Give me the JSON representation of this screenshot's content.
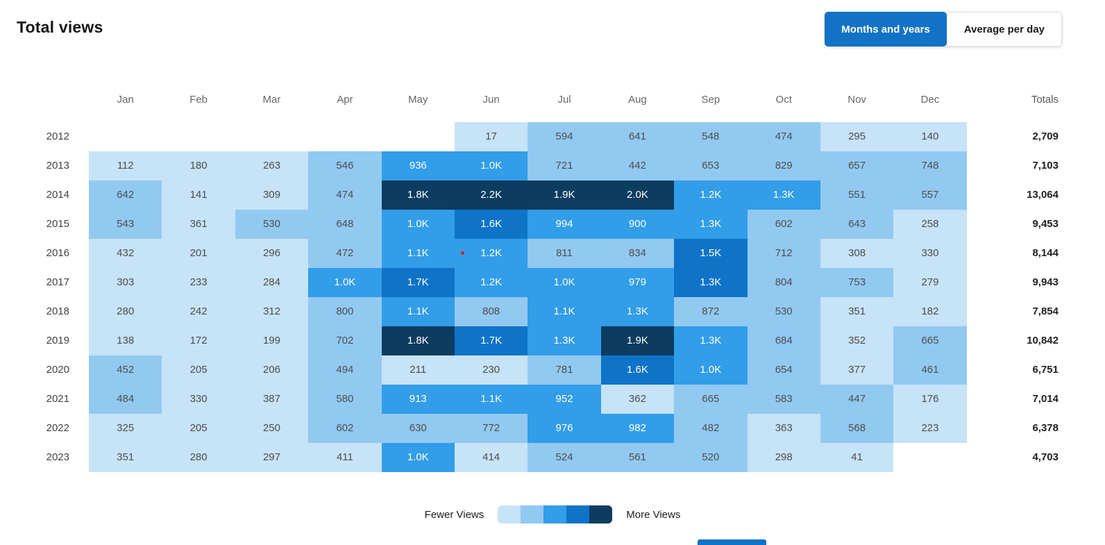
{
  "title": "Total views",
  "toggle": {
    "options": [
      {
        "label": "Months and years",
        "active": true
      },
      {
        "label": "Average per day",
        "active": false
      }
    ]
  },
  "chart_data": {
    "type": "heatmap",
    "title": "Total views",
    "columns": [
      "Jan",
      "Feb",
      "Mar",
      "Apr",
      "May",
      "Jun",
      "Jul",
      "Aug",
      "Sep",
      "Oct",
      "Nov",
      "Dec"
    ],
    "totals_header": "Totals",
    "legend": {
      "min_label": "Fewer Views",
      "max_label": "More Views"
    },
    "palette": [
      "#c6e3f8",
      "#92c9f1",
      "#329de8",
      "#0f74c8",
      "#0d3c61"
    ],
    "rows": [
      {
        "year": "2012",
        "total": "2,709",
        "cells": [
          null,
          null,
          null,
          null,
          null,
          {
            "v": "17",
            "l": 1
          },
          {
            "v": "594",
            "l": 2
          },
          {
            "v": "641",
            "l": 2
          },
          {
            "v": "548",
            "l": 2
          },
          {
            "v": "474",
            "l": 2
          },
          {
            "v": "295",
            "l": 1
          },
          {
            "v": "140",
            "l": 1
          }
        ]
      },
      {
        "year": "2013",
        "total": "7,103",
        "cells": [
          {
            "v": "112",
            "l": 1
          },
          {
            "v": "180",
            "l": 1
          },
          {
            "v": "263",
            "l": 1
          },
          {
            "v": "546",
            "l": 2
          },
          {
            "v": "936",
            "l": 3
          },
          {
            "v": "1.0K",
            "l": 3
          },
          {
            "v": "721",
            "l": 2
          },
          {
            "v": "442",
            "l": 2
          },
          {
            "v": "653",
            "l": 2
          },
          {
            "v": "829",
            "l": 2
          },
          {
            "v": "657",
            "l": 2
          },
          {
            "v": "748",
            "l": 2
          }
        ]
      },
      {
        "year": "2014",
        "total": "13,064",
        "cells": [
          {
            "v": "642",
            "l": 2
          },
          {
            "v": "141",
            "l": 1
          },
          {
            "v": "309",
            "l": 1
          },
          {
            "v": "474",
            "l": 2
          },
          {
            "v": "1.8K",
            "l": 5
          },
          {
            "v": "2.2K",
            "l": 5
          },
          {
            "v": "1.9K",
            "l": 5
          },
          {
            "v": "2.0K",
            "l": 5
          },
          {
            "v": "1.2K",
            "l": 3
          },
          {
            "v": "1.3K",
            "l": 3
          },
          {
            "v": "551",
            "l": 2
          },
          {
            "v": "557",
            "l": 2
          }
        ]
      },
      {
        "year": "2015",
        "total": "9,453",
        "cells": [
          {
            "v": "543",
            "l": 2
          },
          {
            "v": "361",
            "l": 1
          },
          {
            "v": "530",
            "l": 2
          },
          {
            "v": "648",
            "l": 2
          },
          {
            "v": "1.0K",
            "l": 3
          },
          {
            "v": "1.6K",
            "l": 4
          },
          {
            "v": "994",
            "l": 3
          },
          {
            "v": "900",
            "l": 3
          },
          {
            "v": "1.3K",
            "l": 3
          },
          {
            "v": "602",
            "l": 2
          },
          {
            "v": "643",
            "l": 2
          },
          {
            "v": "258",
            "l": 1
          }
        ]
      },
      {
        "year": "2016",
        "total": "8,144",
        "cells": [
          {
            "v": "432",
            "l": 1
          },
          {
            "v": "201",
            "l": 1
          },
          {
            "v": "296",
            "l": 1
          },
          {
            "v": "472",
            "l": 2
          },
          {
            "v": "1.1K",
            "l": 3
          },
          {
            "v": "1.2K",
            "l": 3
          },
          {
            "v": "811",
            "l": 2
          },
          {
            "v": "834",
            "l": 2
          },
          {
            "v": "1.5K",
            "l": 4
          },
          {
            "v": "712",
            "l": 2
          },
          {
            "v": "308",
            "l": 1
          },
          {
            "v": "330",
            "l": 1
          }
        ]
      },
      {
        "year": "2017",
        "total": "9,943",
        "cells": [
          {
            "v": "303",
            "l": 1
          },
          {
            "v": "233",
            "l": 1
          },
          {
            "v": "284",
            "l": 1
          },
          {
            "v": "1.0K",
            "l": 3
          },
          {
            "v": "1.7K",
            "l": 4
          },
          {
            "v": "1.2K",
            "l": 3
          },
          {
            "v": "1.0K",
            "l": 3
          },
          {
            "v": "979",
            "l": 3
          },
          {
            "v": "1.3K",
            "l": 4
          },
          {
            "v": "804",
            "l": 2
          },
          {
            "v": "753",
            "l": 2
          },
          {
            "v": "279",
            "l": 1
          }
        ]
      },
      {
        "year": "2018",
        "total": "7,854",
        "cells": [
          {
            "v": "280",
            "l": 1
          },
          {
            "v": "242",
            "l": 1
          },
          {
            "v": "312",
            "l": 1
          },
          {
            "v": "800",
            "l": 2
          },
          {
            "v": "1.1K",
            "l": 3
          },
          {
            "v": "808",
            "l": 2
          },
          {
            "v": "1.1K",
            "l": 3
          },
          {
            "v": "1.3K",
            "l": 3
          },
          {
            "v": "872",
            "l": 2
          },
          {
            "v": "530",
            "l": 2
          },
          {
            "v": "351",
            "l": 1
          },
          {
            "v": "182",
            "l": 1
          }
        ]
      },
      {
        "year": "2019",
        "total": "10,842",
        "cells": [
          {
            "v": "138",
            "l": 1
          },
          {
            "v": "172",
            "l": 1
          },
          {
            "v": "199",
            "l": 1
          },
          {
            "v": "702",
            "l": 2
          },
          {
            "v": "1.8K",
            "l": 5
          },
          {
            "v": "1.7K",
            "l": 4
          },
          {
            "v": "1.3K",
            "l": 3
          },
          {
            "v": "1.9K",
            "l": 5
          },
          {
            "v": "1.3K",
            "l": 3
          },
          {
            "v": "684",
            "l": 2
          },
          {
            "v": "352",
            "l": 1
          },
          {
            "v": "665",
            "l": 2
          }
        ]
      },
      {
        "year": "2020",
        "total": "6,751",
        "cells": [
          {
            "v": "452",
            "l": 2
          },
          {
            "v": "205",
            "l": 1
          },
          {
            "v": "206",
            "l": 1
          },
          {
            "v": "494",
            "l": 2
          },
          {
            "v": "211",
            "l": 1
          },
          {
            "v": "230",
            "l": 1
          },
          {
            "v": "781",
            "l": 2
          },
          {
            "v": "1.6K",
            "l": 4
          },
          {
            "v": "1.0K",
            "l": 3
          },
          {
            "v": "654",
            "l": 2
          },
          {
            "v": "377",
            "l": 1
          },
          {
            "v": "461",
            "l": 2
          }
        ]
      },
      {
        "year": "2021",
        "total": "7,014",
        "cells": [
          {
            "v": "484",
            "l": 2
          },
          {
            "v": "330",
            "l": 1
          },
          {
            "v": "387",
            "l": 1
          },
          {
            "v": "580",
            "l": 2
          },
          {
            "v": "913",
            "l": 3
          },
          {
            "v": "1.1K",
            "l": 3
          },
          {
            "v": "952",
            "l": 3
          },
          {
            "v": "362",
            "l": 1
          },
          {
            "v": "665",
            "l": 2
          },
          {
            "v": "583",
            "l": 2
          },
          {
            "v": "447",
            "l": 2
          },
          {
            "v": "176",
            "l": 1
          }
        ]
      },
      {
        "year": "2022",
        "total": "6,378",
        "cells": [
          {
            "v": "325",
            "l": 1
          },
          {
            "v": "205",
            "l": 1
          },
          {
            "v": "250",
            "l": 1
          },
          {
            "v": "602",
            "l": 2
          },
          {
            "v": "630",
            "l": 2
          },
          {
            "v": "772",
            "l": 2
          },
          {
            "v": "976",
            "l": 3
          },
          {
            "v": "982",
            "l": 3
          },
          {
            "v": "482",
            "l": 2
          },
          {
            "v": "363",
            "l": 1
          },
          {
            "v": "568",
            "l": 2
          },
          {
            "v": "223",
            "l": 1
          }
        ]
      },
      {
        "year": "2023",
        "total": "4,703",
        "cells": [
          {
            "v": "351",
            "l": 1
          },
          {
            "v": "280",
            "l": 1
          },
          {
            "v": "297",
            "l": 1
          },
          {
            "v": "411",
            "l": 1
          },
          {
            "v": "1.0K",
            "l": 3
          },
          {
            "v": "414",
            "l": 1
          },
          {
            "v": "524",
            "l": 2
          },
          {
            "v": "561",
            "l": 2
          },
          {
            "v": "520",
            "l": 2
          },
          {
            "v": "298",
            "l": 1
          },
          {
            "v": "41",
            "l": 1
          },
          null
        ]
      }
    ]
  }
}
